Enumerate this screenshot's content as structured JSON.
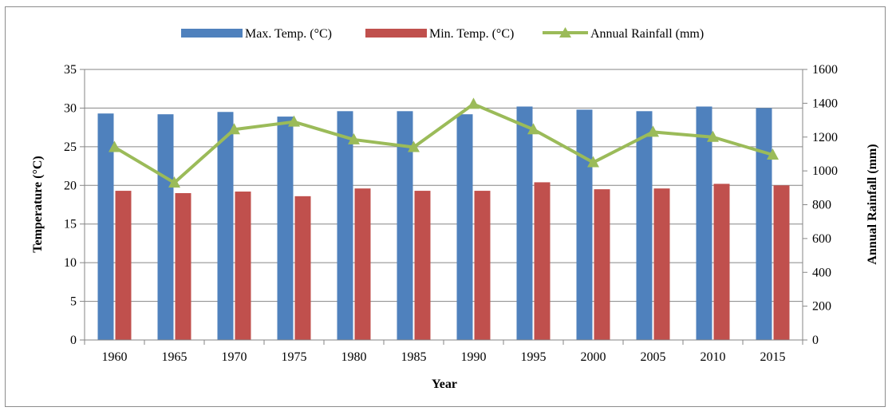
{
  "chart_data": {
    "type": "bar",
    "xlabel": "Year",
    "ylabel": "Temperature (°C)",
    "y2label": "Annual Rainfall (mm)",
    "categories": [
      "1960",
      "1965",
      "1970",
      "1975",
      "1980",
      "1985",
      "1990",
      "1995",
      "2000",
      "2005",
      "2010",
      "2015"
    ],
    "ylim": [
      0,
      35
    ],
    "y_ticks": [
      0,
      5,
      10,
      15,
      20,
      25,
      30,
      35
    ],
    "y2lim": [
      0,
      1600
    ],
    "y2_ticks": [
      0,
      200,
      400,
      600,
      800,
      1000,
      1200,
      1400,
      1600
    ],
    "grid": true,
    "legend_position": "top",
    "series": [
      {
        "name": "Max. Temp. (°C)",
        "type": "bar",
        "axis": "left",
        "color": "#4f81bd",
        "values": [
          29.3,
          29.2,
          29.5,
          28.9,
          29.6,
          29.6,
          29.2,
          30.2,
          29.8,
          29.6,
          30.2,
          30.0
        ]
      },
      {
        "name": "Min. Temp. (°C)",
        "type": "bar",
        "axis": "left",
        "color": "#c0504d",
        "values": [
          19.3,
          19.0,
          19.2,
          18.6,
          19.6,
          19.3,
          19.3,
          20.4,
          19.5,
          19.6,
          20.2,
          20.0
        ]
      },
      {
        "name": "Annual Rainfall (mm)",
        "type": "line",
        "axis": "right",
        "color": "#9bbb59",
        "values": [
          1140,
          930,
          1245,
          1290,
          1185,
          1140,
          1395,
          1245,
          1050,
          1230,
          1200,
          1095
        ]
      }
    ]
  }
}
